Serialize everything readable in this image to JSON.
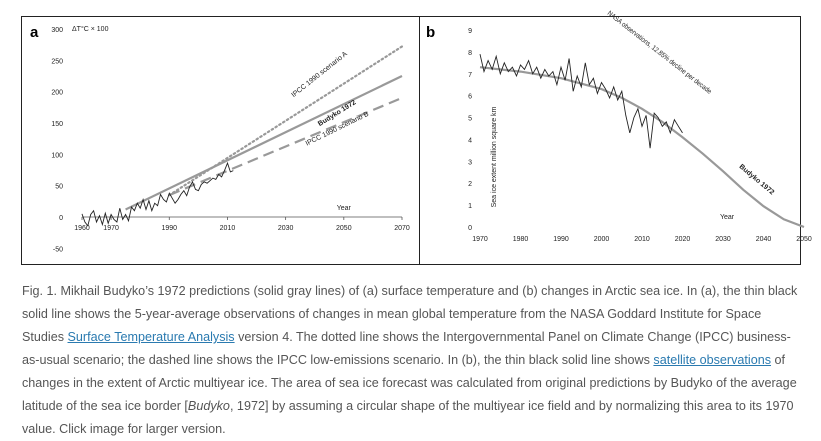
{
  "chart_data": [
    {
      "panel_letter": "a",
      "type": "line",
      "y_unit_label": "ΔT°C × 100",
      "xlabel": "Year",
      "xlim": [
        1960,
        2070
      ],
      "ylim": [
        -50,
        300
      ],
      "x_ticks": [
        1960,
        1970,
        1990,
        2010,
        2030,
        2050,
        2070
      ],
      "y_ticks": [
        -50,
        0,
        50,
        100,
        150,
        200,
        250,
        300
      ],
      "series": [
        {
          "name": "",
          "style": "thin-black",
          "color": "#222222",
          "x": [
            1960,
            1961,
            1962,
            1963,
            1964,
            1965,
            1966,
            1967,
            1968,
            1969,
            1970,
            1971,
            1972,
            1973,
            1974,
            1975,
            1976,
            1977,
            1978,
            1979,
            1980,
            1981,
            1982,
            1983,
            1984,
            1985,
            1986,
            1987,
            1988,
            1989,
            1990,
            1991,
            1992,
            1993,
            1994,
            1995,
            1996,
            1997,
            1998,
            1999,
            2000,
            2001,
            2002,
            2003,
            2004,
            2005,
            2006,
            2007,
            2008,
            2009,
            2010,
            2011,
            2012
          ],
          "y": [
            5,
            -8,
            -14,
            4,
            10,
            -8,
            2,
            -12,
            6,
            -10,
            4,
            -4,
            -8,
            14,
            -4,
            4,
            -6,
            16,
            10,
            22,
            14,
            28,
            12,
            26,
            10,
            22,
            18,
            36,
            28,
            24,
            38,
            30,
            22,
            28,
            36,
            42,
            34,
            48,
            56,
            44,
            42,
            52,
            56,
            54,
            58,
            62,
            60,
            68,
            64,
            74,
            86,
            72,
            74
          ]
        },
        {
          "name": "Budyko 1972",
          "style": "solid-gray",
          "color": "#999999",
          "x": [
            1975,
            2070
          ],
          "y": [
            12,
            225
          ]
        },
        {
          "name": "IPCC 1990 scenario A",
          "style": "dotted-gray",
          "color": "#999999",
          "x": [
            1990,
            2070
          ],
          "y": [
            35,
            272
          ]
        },
        {
          "name": "IPCC 1990 scenario B",
          "style": "dashed-gray",
          "color": "#999999",
          "x": [
            1990,
            2070
          ],
          "y": [
            35,
            190
          ]
        }
      ]
    },
    {
      "panel_letter": "b",
      "type": "line",
      "ylabel": "Sea ice extent million square km",
      "xlabel": "Year",
      "xlim": [
        1970,
        2050
      ],
      "ylim": [
        0,
        9
      ],
      "x_ticks": [
        1970,
        1980,
        1990,
        2000,
        2010,
        2020,
        2030,
        2040,
        2050
      ],
      "y_ticks": [
        0,
        1,
        2,
        3,
        4,
        5,
        6,
        7,
        8,
        9
      ],
      "series": [
        {
          "name": "NASA observations, 12.85% decline per decade",
          "style": "thin-black",
          "color": "#222222",
          "x": [
            1970,
            1971,
            1972,
            1973,
            1974,
            1975,
            1976,
            1977,
            1978,
            1979,
            1980,
            1981,
            1982,
            1983,
            1984,
            1985,
            1986,
            1987,
            1988,
            1989,
            1990,
            1991,
            1992,
            1993,
            1994,
            1995,
            1996,
            1997,
            1998,
            1999,
            2000,
            2001,
            2002,
            2003,
            2004,
            2005,
            2006,
            2007,
            2008,
            2009,
            2010,
            2011,
            2012,
            2013,
            2014,
            2015,
            2016,
            2017,
            2018,
            2019,
            2020
          ],
          "y": [
            7.9,
            7.1,
            7.6,
            7.2,
            7.8,
            7.0,
            7.5,
            7.1,
            7.3,
            6.9,
            7.4,
            7.2,
            7.6,
            7.0,
            7.3,
            6.8,
            7.2,
            6.9,
            7.1,
            6.5,
            7.3,
            6.7,
            7.7,
            6.2,
            6.9,
            6.4,
            7.5,
            6.5,
            6.8,
            6.1,
            6.6,
            6.3,
            5.9,
            6.4,
            5.8,
            6.2,
            5.1,
            4.3,
            5.0,
            5.4,
            4.6,
            5.1,
            3.6,
            5.2,
            5.0,
            4.6,
            4.8,
            4.3,
            4.9,
            4.6,
            4.3
          ]
        },
        {
          "name": "Budyko 1972",
          "style": "solid-gray",
          "color": "#999999",
          "x": [
            1970,
            1980,
            1990,
            2000,
            2005,
            2010,
            2015,
            2020,
            2025,
            2030,
            2035,
            2040,
            2045,
            2050
          ],
          "y": [
            7.3,
            7.1,
            6.8,
            6.3,
            5.9,
            5.4,
            4.8,
            4.1,
            3.35,
            2.55,
            1.7,
            0.95,
            0.35,
            0.0
          ]
        }
      ]
    }
  ],
  "caption": {
    "t1": "Fig. 1. Mikhail Budyko’s 1972 predictions (solid gray lines) of (a) surface temperature and (b) changes in Arctic sea ice. In (a), the thin black solid line shows the 5-year-average observations of changes in mean global temperature from the NASA Goddard Institute for Space Studies ",
    "link1": "Surface Temperature Analysis",
    "t2": " version 4. The dotted line shows the Intergovernmental Panel on Climate Change (IPCC) business-as-usual scenario; the dashed line shows the IPCC low-emissions scenario. In (b), the thin black solid line shows ",
    "link2": "satellite observations",
    "t3": " of changes in the extent of Arctic multiyear ice. The area of sea ice forecast was calculated from original predictions by Budyko of the average latitude of the sea ice border [",
    "em": "Budyko",
    "t4": ", 1972] by assuming a circular shape of the multiyear ice field and by normalizing this area to its 1970 value. Click image for larger version."
  },
  "colors": {
    "observations": "#222222",
    "prediction": "#999999",
    "link": "#2a7ab0"
  }
}
